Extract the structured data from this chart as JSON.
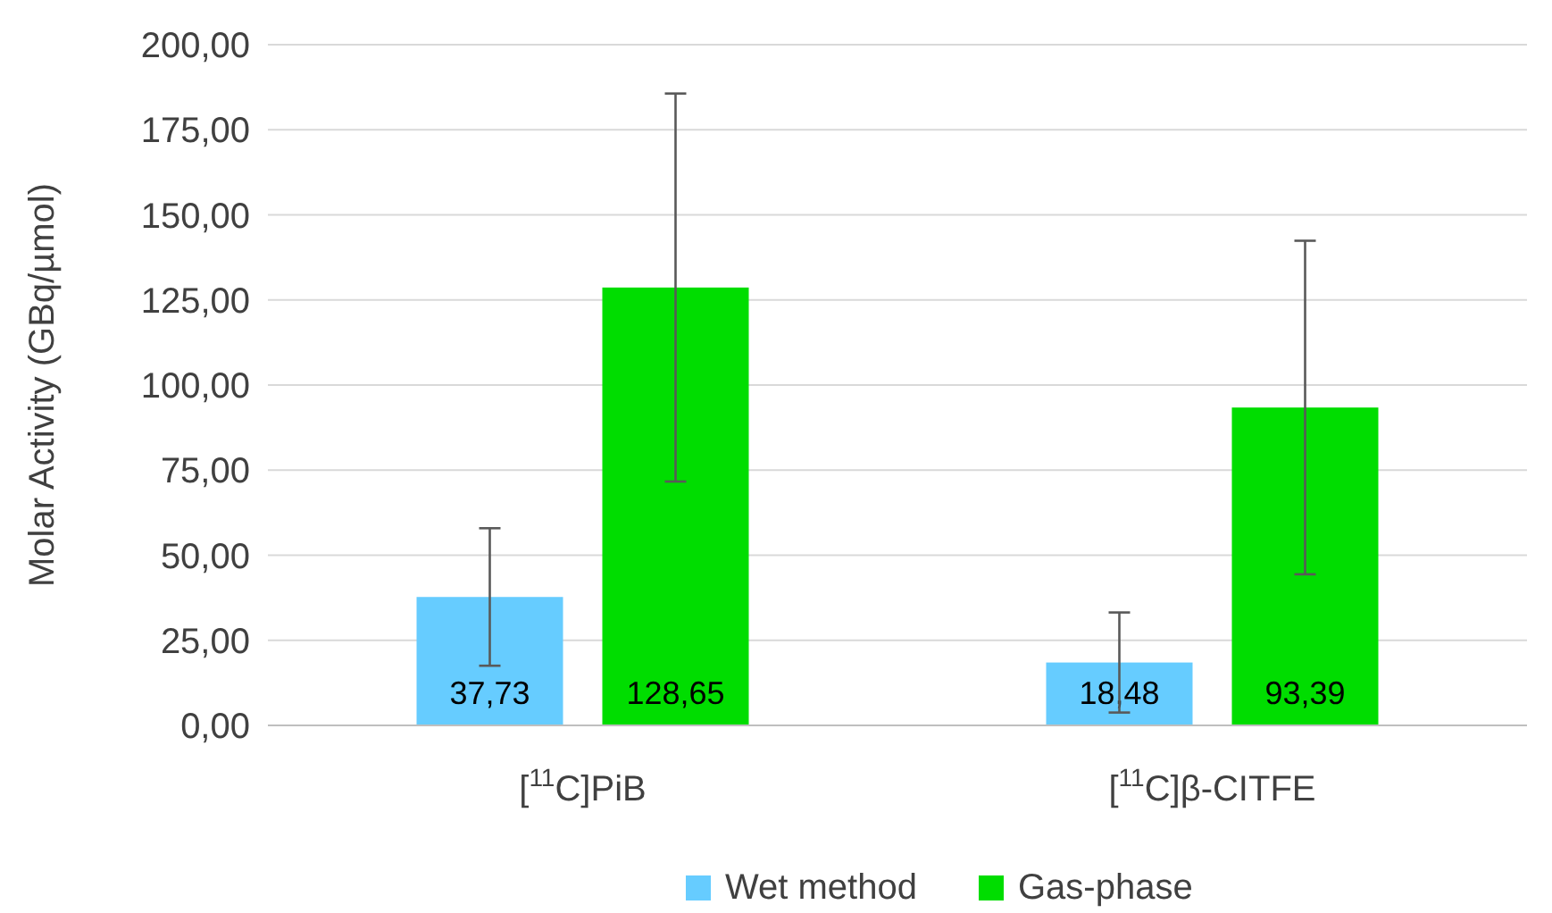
{
  "chart_data": {
    "type": "bar",
    "ylabel": "Molar Activity (GBq/µmol)",
    "categories": [
      "[$^{11}$C]PiB",
      "[$^{11}$C]β-CITFE"
    ],
    "series": [
      {
        "name": "Wet method",
        "color": "#66ccff",
        "values": [
          37.73,
          18.48
        ],
        "errors": [
          20.2,
          14.7
        ],
        "value_labels": [
          "37,73",
          "18,48"
        ]
      },
      {
        "name": "Gas-phase",
        "color": "#00dd00",
        "values": [
          128.65,
          93.39
        ],
        "errors": [
          57,
          49
        ],
        "value_labels": [
          "128,65",
          "93,39"
        ]
      }
    ],
    "ylim": [
      0,
      200
    ],
    "yticks": [
      {
        "value": 0,
        "label": "0,00"
      },
      {
        "value": 25,
        "label": "25,00"
      },
      {
        "value": 50,
        "label": "50,00"
      },
      {
        "value": 75,
        "label": "75,00"
      },
      {
        "value": 100,
        "label": "100,00"
      },
      {
        "value": 125,
        "label": "125,00"
      },
      {
        "value": 150,
        "label": "150,00"
      },
      {
        "value": 175,
        "label": "175,00"
      },
      {
        "value": 200,
        "label": "200,00"
      }
    ],
    "grid": "y",
    "legend": "bottom"
  }
}
